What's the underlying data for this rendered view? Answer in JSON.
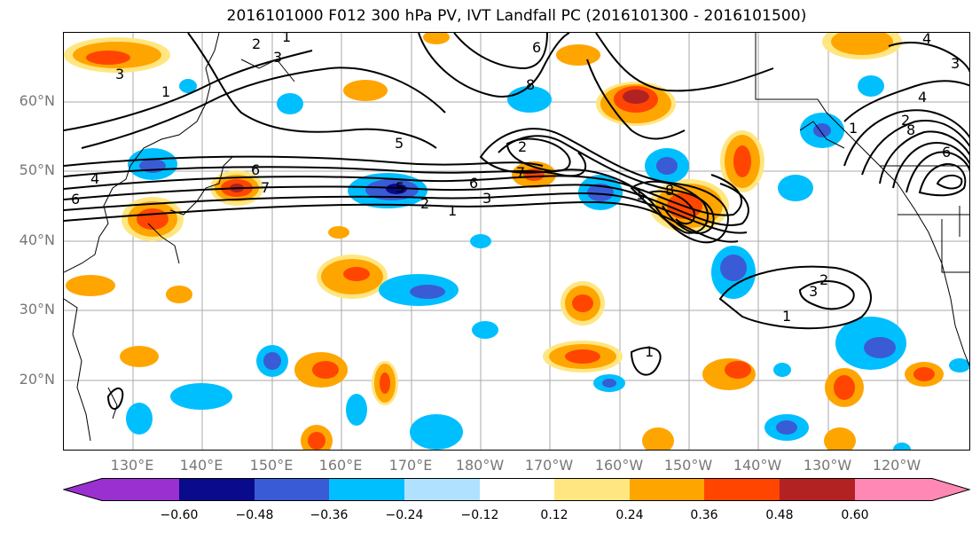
{
  "title": "2016101000 F012 300 hPa PV, IVT Landfall PC (2016101300 - 2016101500)",
  "lat_labels": [
    "60°N",
    "50°N",
    "40°N",
    "30°N",
    "20°N"
  ],
  "lon_labels": [
    "130°E",
    "140°E",
    "150°E",
    "160°E",
    "170°E",
    "180°W",
    "170°W",
    "160°W",
    "150°W",
    "140°W",
    "130°W",
    "120°W"
  ],
  "contour_labels": [
    "1",
    "2",
    "3",
    "4",
    "5",
    "6",
    "7",
    "8"
  ],
  "colorbar": {
    "ticks": [
      "−0.60",
      "−0.48",
      "−0.36",
      "−0.24",
      "−0.12",
      "0.12",
      "0.24",
      "0.36",
      "0.48",
      "0.60"
    ],
    "colors": [
      "#9b30d0",
      "#0a0a8c",
      "#3a5bd6",
      "#00bfff",
      "#b0e2ff",
      "#ffffff",
      "#ffe680",
      "#ffa500",
      "#ff4500",
      "#b22222",
      "#ff88b4"
    ]
  }
}
